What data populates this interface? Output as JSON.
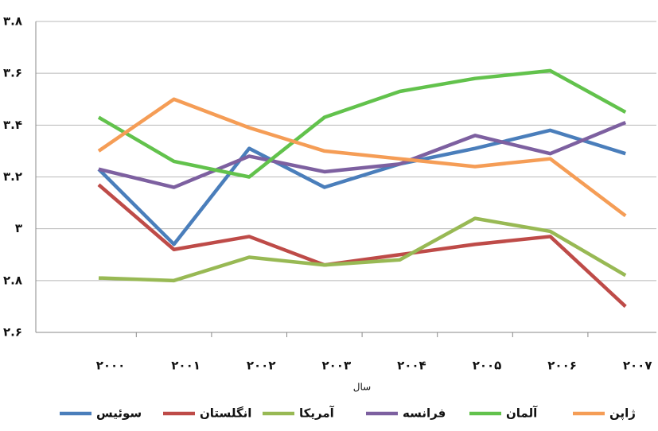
{
  "chart_data": {
    "type": "line",
    "x_label": "سال",
    "categories": [
      "۲۰۰۰",
      "۲۰۰۱",
      "۲۰۰۲",
      "۲۰۰۳",
      "۲۰۰۴",
      "۲۰۰۵",
      "۲۰۰۶",
      "۲۰۰۷"
    ],
    "ylim": [
      2.6,
      3.8
    ],
    "yticks": [
      {
        "value": 2.6,
        "label": "۲.۶"
      },
      {
        "value": 2.8,
        "label": "۲.۸"
      },
      {
        "value": 3,
        "label": "۳"
      },
      {
        "value": 3.2,
        "label": "۳.۲"
      },
      {
        "value": 3.4,
        "label": "۳.۴"
      },
      {
        "value": 3.6,
        "label": "۳.۶"
      },
      {
        "value": 3.8,
        "label": "۳.۸"
      }
    ],
    "grid": true,
    "legend": "bottom",
    "series": [
      {
        "name": "سوئیس",
        "color": "#4a7ebb",
        "values": [
          3.23,
          2.94,
          3.31,
          3.16,
          3.25,
          3.31,
          3.38,
          3.29
        ]
      },
      {
        "name": "انگلستان",
        "color": "#be4b48",
        "values": [
          3.17,
          2.92,
          2.97,
          2.86,
          2.9,
          2.94,
          2.97,
          2.7
        ]
      },
      {
        "name": "آمریکا",
        "color": "#98b954",
        "values": [
          2.81,
          2.8,
          2.89,
          2.86,
          2.88,
          3.04,
          2.99,
          2.82
        ]
      },
      {
        "name": "فرانسه",
        "color": "#7d60a0",
        "values": [
          3.23,
          3.16,
          3.28,
          3.22,
          3.25,
          3.36,
          3.29,
          3.41
        ]
      },
      {
        "name": "آلمان",
        "color": "#62c24c",
        "values": [
          3.43,
          3.26,
          3.2,
          3.43,
          3.53,
          3.58,
          3.61,
          3.45
        ]
      },
      {
        "name": "ژاپن",
        "color": "#f59d56",
        "values": [
          3.3,
          3.5,
          3.39,
          3.3,
          3.27,
          3.24,
          3.27,
          3.05
        ]
      }
    ]
  }
}
